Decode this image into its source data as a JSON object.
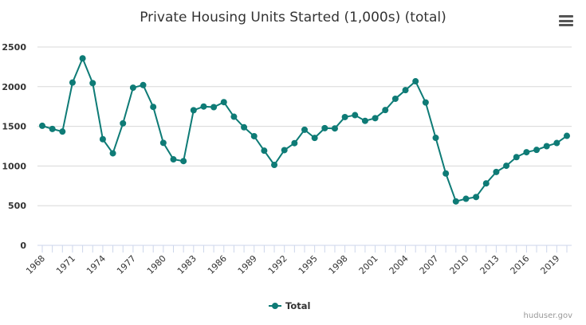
{
  "chart_data": {
    "type": "line",
    "title": "Private Housing Units Started (1,000s) (total)",
    "xlabel": "",
    "ylabel": "",
    "x": [
      1968,
      1969,
      1970,
      1971,
      1972,
      1973,
      1974,
      1975,
      1976,
      1977,
      1978,
      1979,
      1980,
      1981,
      1982,
      1983,
      1984,
      1985,
      1986,
      1987,
      1988,
      1989,
      1990,
      1991,
      1992,
      1993,
      1994,
      1995,
      1996,
      1997,
      1998,
      1999,
      2000,
      2001,
      2002,
      2003,
      2004,
      2005,
      2006,
      2007,
      2008,
      2009,
      2010,
      2011,
      2012,
      2013,
      2014,
      2015,
      2016,
      2017,
      2018,
      2019,
      2020
    ],
    "x_tick_labels": [
      "1968",
      "1971",
      "1974",
      "1977",
      "1980",
      "1983",
      "1986",
      "1989",
      "1992",
      "1995",
      "1998",
      "2001",
      "2004",
      "2007",
      "2010",
      "2013",
      "2016",
      "2019"
    ],
    "x_tick_values": [
      1968,
      1971,
      1974,
      1977,
      1980,
      1983,
      1986,
      1989,
      1992,
      1995,
      1998,
      2001,
      2004,
      2007,
      2010,
      2013,
      2016,
      2019
    ],
    "ylim": [
      0,
      2500
    ],
    "y_ticks": [
      0,
      500,
      1000,
      1500,
      2000,
      2500
    ],
    "grid": true,
    "legend_position": "bottom-center",
    "series": [
      {
        "name": "Total",
        "color": "#0e7b76",
        "values": [
          1507,
          1467,
          1434,
          2052,
          2357,
          2045,
          1338,
          1160,
          1538,
          1987,
          2020,
          1745,
          1292,
          1084,
          1062,
          1703,
          1750,
          1742,
          1805,
          1621,
          1488,
          1376,
          1193,
          1014,
          1200,
          1288,
          1457,
          1354,
          1477,
          1474,
          1617,
          1641,
          1569,
          1603,
          1705,
          1848,
          1956,
          2068,
          1801,
          1355,
          906,
          554,
          587,
          609,
          781,
          925,
          1003,
          1112,
          1174,
          1203,
          1250,
          1290,
          1380
        ]
      }
    ]
  },
  "credit": "huduser.gov",
  "menu_icon": "hamburger-menu-icon"
}
